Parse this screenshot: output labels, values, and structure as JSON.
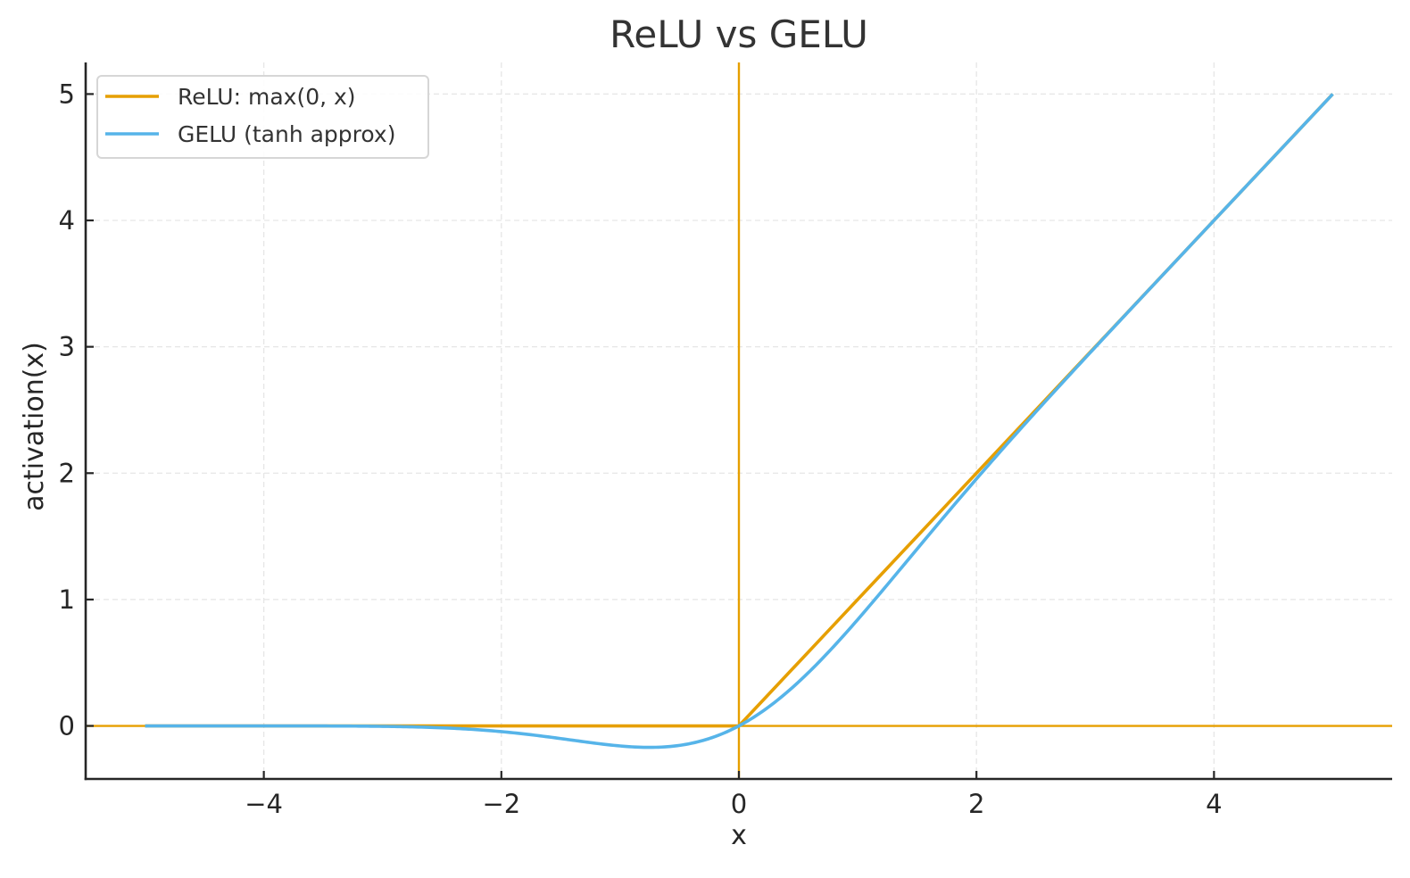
{
  "chart_data": {
    "type": "line",
    "title": "ReLU vs GELU",
    "xlabel": "x",
    "ylabel": "activation(x)",
    "xlim": [
      -5.5,
      5.5
    ],
    "ylim": [
      -0.42,
      5.25
    ],
    "xticks": [
      -4,
      -2,
      0,
      2,
      4
    ],
    "xtick_labels": [
      "−4",
      "−2",
      "0",
      "2",
      "4"
    ],
    "yticks": [
      0,
      1,
      2,
      3,
      4,
      5
    ],
    "ytick_labels": [
      "0",
      "1",
      "2",
      "3",
      "4",
      "5"
    ],
    "grid": true,
    "legend_position": "upper left",
    "reference_lines": [
      {
        "type": "horizontal",
        "y": 0,
        "color": "#E69F00"
      },
      {
        "type": "vertical",
        "x": 0,
        "color": "#E69F00"
      }
    ],
    "x": [
      -5,
      -4.5,
      -4,
      -3.5,
      -3,
      -2.5,
      -2,
      -1.75,
      -1.5,
      -1.25,
      -1,
      -0.75,
      -0.5,
      -0.25,
      0,
      0.25,
      0.5,
      0.75,
      1,
      1.25,
      1.5,
      1.75,
      2,
      2.5,
      3,
      3.5,
      4,
      4.5,
      5
    ],
    "series": [
      {
        "name": "ReLU: max(0, x)",
        "color": "#E69F00",
        "values": [
          0,
          0,
          0,
          0,
          0,
          0,
          0,
          0,
          0,
          0,
          0,
          0,
          0,
          0,
          0,
          0.25,
          0.5,
          0.75,
          1,
          1.25,
          1.5,
          1.75,
          2,
          2.5,
          3,
          3.5,
          4,
          4.5,
          5
        ]
      },
      {
        "name": "GELU (tanh approx)",
        "color": "#56B4E9",
        "values": [
          0,
          0,
          -0.0001,
          -0.0008,
          -0.0036,
          -0.0132,
          -0.0454,
          -0.0706,
          -0.1,
          -0.1318,
          -0.1588,
          -0.17,
          -0.1543,
          -0.0996,
          0,
          0.1504,
          0.3457,
          0.58,
          0.8412,
          1.1182,
          1.3996,
          1.6794,
          1.9546,
          2.4845,
          2.9964,
          3.4992,
          3.9999,
          4.5,
          5.0
        ]
      }
    ]
  }
}
